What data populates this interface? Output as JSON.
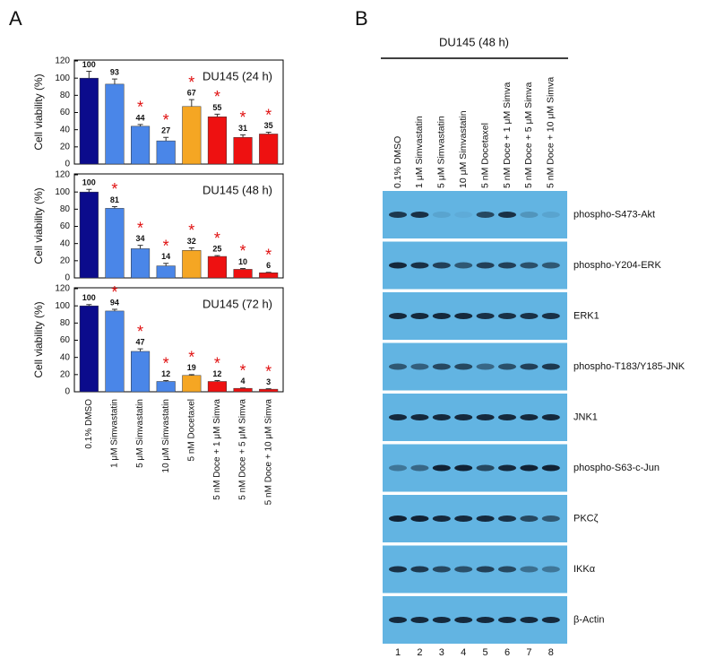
{
  "panel_labels": [
    "A",
    "B"
  ],
  "chart_data": [
    {
      "type": "bar",
      "title": "DU145 (24 h)",
      "y_label": "Cell viability (%)",
      "values": [
        100,
        93,
        44,
        27,
        67,
        55,
        31,
        35
      ],
      "errors": [
        8,
        6,
        2,
        4,
        8,
        3,
        3,
        2
      ],
      "colors": [
        "#0b0b8c",
        "#4a86e8",
        "#4a86e8",
        "#4a86e8",
        "#f5a623",
        "#ee1111",
        "#ee1111",
        "#ee1111"
      ],
      "significant": [
        false,
        false,
        true,
        true,
        true,
        true,
        true,
        true
      ],
      "significance_marker": "*",
      "ylim": [
        0,
        120
      ],
      "yticks": [
        0,
        20,
        40,
        60,
        80,
        100,
        120
      ]
    },
    {
      "type": "bar",
      "title": "DU145 (48 h)",
      "y_label": "Cell viability (%)",
      "values": [
        100,
        81,
        34,
        14,
        32,
        25,
        10,
        6
      ],
      "errors": [
        3,
        2,
        4,
        3,
        3,
        1,
        1,
        0.5
      ],
      "colors": [
        "#0b0b8c",
        "#4a86e8",
        "#4a86e8",
        "#4a86e8",
        "#f5a623",
        "#ee1111",
        "#ee1111",
        "#ee1111"
      ],
      "significant": [
        false,
        true,
        true,
        true,
        true,
        true,
        true,
        true
      ],
      "significance_marker": "*",
      "ylim": [
        0,
        120
      ],
      "yticks": [
        0,
        20,
        40,
        60,
        80,
        100,
        120
      ]
    },
    {
      "type": "bar",
      "title": "DU145 (72 h)",
      "y_label": "Cell viability (%)",
      "categories": [
        "0.1% DMSO",
        "1 μM Simvastatin",
        "5 μM Simvastatin",
        "10 μM Simvastatin",
        "5 nM Docetaxel",
        "5 nM Doce + 1 μM Simva",
        "5 nM Doce + 5 μM Simva",
        "5 nM Doce + 10 μM Simva"
      ],
      "values": [
        100,
        94,
        47,
        12,
        19,
        12,
        4,
        3
      ],
      "errors": [
        1.5,
        2,
        3,
        1,
        1,
        1,
        0.5,
        0.5
      ],
      "colors": [
        "#0b0b8c",
        "#4a86e8",
        "#4a86e8",
        "#4a86e8",
        "#f5a623",
        "#ee1111",
        "#ee1111",
        "#ee1111"
      ],
      "significant": [
        false,
        true,
        true,
        true,
        true,
        true,
        true,
        true
      ],
      "significance_marker": "*",
      "ylim": [
        0,
        120
      ],
      "yticks": [
        0,
        20,
        40,
        60,
        80,
        100,
        120
      ]
    }
  ],
  "blot": {
    "title": "DU145 (48 h)",
    "lanes": [
      "0.1% DMSO",
      "1 μM Simvastatin",
      "5 μM Simvastatin",
      "10 μM Simvastatin",
      "5 nM Docetaxel",
      "5 nM Doce + 1 μM Simva",
      "5 nM Doce + 5 μM Simva",
      "5 nM Doce + 10 μM Simva"
    ],
    "lane_numbers": [
      1,
      2,
      3,
      4,
      5,
      6,
      7,
      8
    ],
    "rows": [
      {
        "label": "phospho-S473-Akt",
        "intensity": [
          0.8,
          0.85,
          0.1,
          0.05,
          0.7,
          0.85,
          0.2,
          0.1
        ]
      },
      {
        "label": "phospho-Y204-ERK",
        "intensity": [
          0.9,
          0.85,
          0.75,
          0.6,
          0.75,
          0.75,
          0.65,
          0.6
        ]
      },
      {
        "label": "ERK1",
        "intensity": [
          0.9,
          0.9,
          0.9,
          0.9,
          0.85,
          0.85,
          0.85,
          0.85
        ]
      },
      {
        "label": "phospho-T183/Y185-JNK",
        "intensity": [
          0.6,
          0.55,
          0.7,
          0.7,
          0.5,
          0.65,
          0.75,
          0.8
        ]
      },
      {
        "label": "JNK1",
        "intensity": [
          0.9,
          0.9,
          0.9,
          0.9,
          0.9,
          0.9,
          0.9,
          0.9
        ]
      },
      {
        "label": "phospho-S63-c-Jun",
        "intensity": [
          0.4,
          0.5,
          0.95,
          0.95,
          0.7,
          0.9,
          0.95,
          0.95
        ]
      },
      {
        "label": "PKCζ",
        "intensity": [
          0.95,
          0.95,
          0.9,
          0.9,
          0.9,
          0.85,
          0.7,
          0.6
        ]
      },
      {
        "label": "IKKα",
        "intensity": [
          0.85,
          0.8,
          0.7,
          0.65,
          0.75,
          0.7,
          0.45,
          0.4
        ]
      },
      {
        "label": "β-Actin",
        "intensity": [
          0.9,
          0.9,
          0.9,
          0.9,
          0.9,
          0.9,
          0.9,
          0.9
        ]
      }
    ]
  }
}
